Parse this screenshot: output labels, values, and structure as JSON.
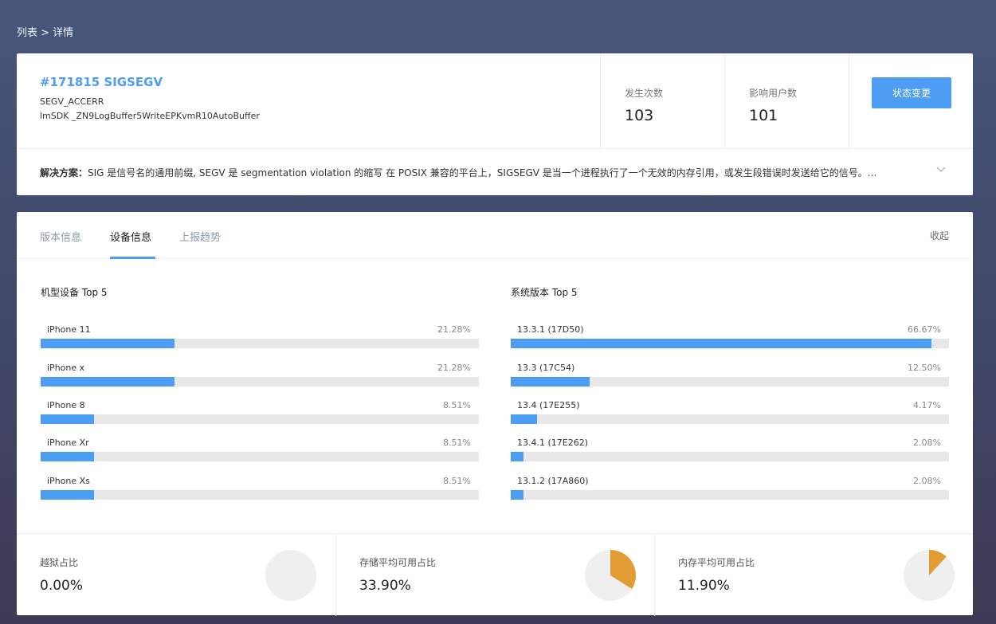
{
  "breadcrumb": "列表 > 详情",
  "issue": {
    "title": "#171815 SIGSEGV",
    "subtitle_1": "SEGV_ACCERR",
    "subtitle_2": "lmSDK _ZN9LogBuffer5WriteEPKvmR10AutoBuffer"
  },
  "stats": {
    "count_label": "发生次数",
    "count_value": "103",
    "users_label": "影响用户数",
    "users_value": "101"
  },
  "status_button": "状态变更",
  "solution": {
    "label": "解决方案：",
    "text": "SIG 是信号名的通用前缀, SEGV 是 segmentation violation 的缩写 在 POSIX 兼容的平台上，SIGSEGV 是当一个进程执行了一个无效的内存引用，或发生段错误时发送给它的信号。..."
  },
  "tabs": [
    "版本信息",
    "设备信息",
    "上报趋势"
  ],
  "active_tab": "设备信息",
  "collapse_label": "收起",
  "colors": {
    "accent": "#4e9df5",
    "pie": "#e39b33",
    "pie_bg": "#efefef"
  },
  "chart_data": [
    {
      "type": "bar",
      "title": "机型设备 Top 5",
      "categories": [
        "iPhone 11",
        "iPhone x",
        "iPhone 8",
        "iPhone Xr",
        "iPhone Xs"
      ],
      "values": [
        21.28,
        21.28,
        8.51,
        8.51,
        8.51
      ],
      "labels": [
        "21.28%",
        "21.28%",
        "8.51%",
        "8.51%",
        "8.51%"
      ]
    },
    {
      "type": "bar",
      "title": "系统版本 Top 5",
      "categories": [
        "13.3.1 (17D50)",
        "13.3 (17C54)",
        "13.4 (17E255)",
        "13.4.1 (17E262)",
        "13.1.2 (17A860)"
      ],
      "values": [
        66.67,
        12.5,
        4.17,
        2.08,
        2.08
      ],
      "labels": [
        "66.67%",
        "12.50%",
        "4.17%",
        "2.08%",
        "2.08%"
      ]
    },
    {
      "type": "pie",
      "title": "越狱占比",
      "value": 0.0,
      "label": "0.00%"
    },
    {
      "type": "pie",
      "title": "存储平均可用占比",
      "value": 33.9,
      "label": "33.90%"
    },
    {
      "type": "pie",
      "title": "内存平均可用占比",
      "value": 11.9,
      "label": "11.90%"
    }
  ]
}
